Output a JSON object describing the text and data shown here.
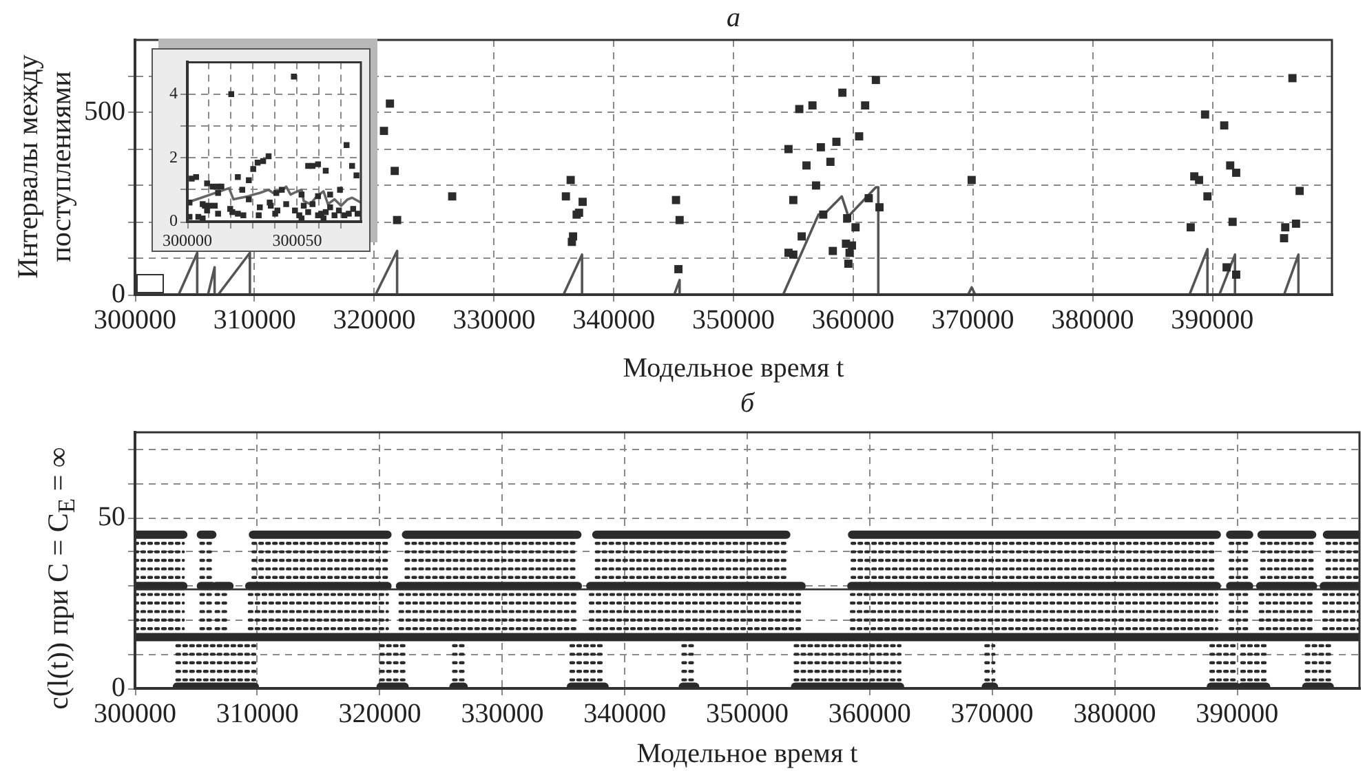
{
  "chart_data": [
    {
      "type": "scatter",
      "title": "а",
      "xlabel": "Модельное время t",
      "ylabel": "Интервалы между\nпоступлениями",
      "xlim": [
        300000,
        400000
      ],
      "ylim": [
        0,
        700
      ],
      "xticks": [
        300000,
        310000,
        320000,
        330000,
        340000,
        350000,
        360000,
        370000,
        380000,
        390000
      ],
      "yticks": [
        0,
        {
          "value": 100,
          "label": null
        },
        {
          "value": 200,
          "label": null
        },
        {
          "value": 300,
          "label": null
        },
        {
          "value": 400,
          "label": null
        },
        500,
        {
          "value": 600,
          "label": null
        }
      ],
      "grid": true,
      "marker": "square",
      "series": [
        {
          "type": "scatter",
          "color": "#2b2b2b",
          "x": [
            320800,
            321300,
            321700,
            321900,
            326500,
            336400,
            336000,
            337400,
            337100,
            336900,
            336600,
            336500,
            345200,
            345500,
            345400,
            354600,
            355000,
            355500,
            356600,
            356100,
            357300,
            356900,
            355700,
            354600,
            355000,
            357500,
            358100,
            358600,
            359100,
            358300,
            359500,
            359400,
            359900,
            359700,
            359600,
            360200,
            360500,
            361000,
            361900,
            361300,
            362200,
            369900,
            388200,
            388500,
            388900,
            389400,
            389600,
            391000,
            391500,
            392000,
            391700,
            391200,
            392000,
            396700,
            397300,
            397000,
            396100,
            396000
          ],
          "values": [
            450,
            525,
            340,
            205,
            270,
            315,
            270,
            255,
            225,
            220,
            160,
            145,
            260,
            205,
            70,
            400,
            260,
            510,
            520,
            355,
            405,
            300,
            160,
            115,
            110,
            220,
            365,
            420,
            555,
            120,
            210,
            140,
            135,
            115,
            85,
            185,
            435,
            520,
            590,
            265,
            240,
            315,
            185,
            325,
            315,
            495,
            270,
            465,
            355,
            335,
            200,
            75,
            55,
            595,
            285,
            195,
            185,
            155
          ]
        },
        {
          "type": "line",
          "color": "#555555",
          "marker": "none",
          "x": [
            300000,
            303650,
            305200,
            305200,
            306100,
            306650,
            306650,
            306950,
            309600,
            309600,
            320100,
            321900,
            321900,
            335800,
            337350,
            337350,
            345050,
            345500,
            345500,
            354150,
            357100,
            357700,
            359050,
            359600,
            361900,
            362100,
            362100,
            369600,
            369900,
            370200,
            388100,
            389600,
            389600,
            390600,
            391900,
            391900,
            396000,
            397200,
            397200,
            400000
          ],
          "values": [
            0,
            0,
            115,
            0,
            0,
            75,
            0,
            0,
            115,
            0,
            0,
            120,
            0,
            0,
            110,
            0,
            0,
            40,
            0,
            0,
            220,
            225,
            270,
            215,
            295,
            295,
            0,
            0,
            20,
            0,
            0,
            125,
            0,
            0,
            110,
            0,
            0,
            110,
            0,
            0
          ]
        }
      ]
    },
    {
      "type": "scatter",
      "xlim": [
        300000,
        300079
      ],
      "ylim": [
        0,
        5
      ],
      "xticks": [
        300000,
        {
          "value": 300010,
          "label": null
        },
        {
          "value": 300020,
          "label": null
        },
        {
          "value": 300030,
          "label": null
        },
        {
          "value": 300040,
          "label": null
        },
        300050,
        {
          "value": 300060,
          "label": null
        },
        {
          "value": 300070,
          "label": null
        }
      ],
      "yticks": [
        0,
        {
          "value": 1,
          "label": null
        },
        2,
        {
          "value": 3,
          "label": null
        },
        4
      ],
      "grid": true,
      "marker": "square",
      "series": [
        {
          "type": "scatter",
          "color": "#2b2b2b",
          "x": [
            300020,
            300048.5,
            300072.5,
            300037,
            300034.5,
            300032,
            300030,
            300028,
            300023,
            300025,
            300004,
            300002,
            300009,
            300011.5,
            300014,
            300015.5,
            300014,
            300055,
            300057,
            300059.5,
            300063,
            300075,
            300077,
            300052,
            300043,
            300040.5,
            300069.5,
            300065,
            300059.5,
            300001,
            300001,
            300005,
            300007,
            300008,
            300010,
            300012.5,
            300014,
            300020.5,
            300019.5,
            300023,
            300025.5,
            300028,
            300032.5,
            300033,
            300037.5,
            300038,
            300040,
            300041,
            300045,
            300049,
            300051,
            300053,
            300055,
            300057,
            300059.5,
            300061,
            300063,
            300065,
            300067,
            300069,
            300071.5,
            300073.5,
            300075.5,
            300077.5,
            300009,
            300007,
            300052,
            300062
          ],
          "values": [
            4,
            4.55,
            2.4,
            2.05,
            1.9,
            1.85,
            1.65,
            1.3,
            1.4,
            1,
            1.4,
            1.35,
            1.2,
            1.1,
            1.1,
            1.1,
            0.9,
            1.75,
            1.75,
            1.8,
            1.6,
            1.75,
            1.45,
            0.85,
            1,
            0.9,
            1,
            0.85,
            0.8,
            0.6,
            0.15,
            0.15,
            0.55,
            0.5,
            0.5,
            0.5,
            0.25,
            0.3,
            0.4,
            0.25,
            0.2,
            0.7,
            0.2,
            0.45,
            0.6,
            0.5,
            0.25,
            0.35,
            0.55,
            0.35,
            0.2,
            0.5,
            0.3,
            0.55,
            0.2,
            0.25,
            0.3,
            0.45,
            0.2,
            0.35,
            0.2,
            0.25,
            0.4,
            0.25,
            0.35,
            0.1,
            0.1,
            0.1
          ]
        },
        {
          "type": "line",
          "color": "#666666",
          "marker": "none",
          "x": [
            300000,
            300019,
            300021,
            300028,
            300030,
            300033,
            300037,
            300039,
            300043,
            300045,
            300047,
            300050,
            300052,
            300053,
            300056,
            300059,
            300062,
            300064,
            300067,
            300070,
            300073,
            300075,
            300079
          ],
          "values": [
            0.6,
            1.05,
            0.7,
            0.8,
            0.85,
            0.9,
            1,
            0.9,
            0.95,
            1.1,
            0.85,
            0.95,
            1,
            0.65,
            0.55,
            0.8,
            0.95,
            0.55,
            0.7,
            0.5,
            0.7,
            0.75,
            0.6
          ]
        }
      ]
    },
    {
      "type": "line",
      "title": "б",
      "xlabel": "Модельное время t",
      "ylabel": "c(l(t)) при C = C$_{E}$ = ∞",
      "xlim": [
        300000,
        400000
      ],
      "ylim": [
        0,
        75
      ],
      "xticks": [
        300000,
        310000,
        320000,
        330000,
        340000,
        350000,
        360000,
        370000,
        380000,
        390000
      ],
      "yticks": [
        0,
        {
          "value": 10,
          "label": null
        },
        {
          "value": 20,
          "label": null
        },
        {
          "value": 30,
          "label": null
        },
        {
          "value": 40,
          "label": null
        },
        50,
        {
          "value": 60,
          "label": null
        },
        {
          "value": 70,
          "label": null
        }
      ],
      "grid": true,
      "marker": "none",
      "ref_lines": [
        {
          "axis": "y",
          "value": 29,
          "color": "#333333"
        }
      ],
      "series": [
        {
          "color": "#2b2b2b",
          "line_style": "solid",
          "x": [
            300000,
            303950,
            304700,
            305380,
            306320,
            308000,
            309630,
            320620,
            321400,
            322130,
            336130,
            336900,
            337670,
            353190,
            355900,
            358560,
            388350,
            388900,
            389440,
            390990,
            391500,
            392000,
            396140,
            396700,
            397340,
            400000
          ],
          "values": [
            45,
            45,
            null,
            45,
            45,
            null,
            45,
            45,
            null,
            45,
            45,
            null,
            45,
            45,
            null,
            45,
            45,
            null,
            45,
            45,
            null,
            45,
            45,
            null,
            45,
            45
          ]
        },
        {
          "color": "#2b2b2b",
          "line_style": "dotted",
          "x": [
            300000,
            303950,
            304700,
            305380,
            306320,
            308000,
            309630,
            320620,
            321400,
            322130,
            336130,
            336900,
            337670,
            353190,
            355900,
            358560,
            388350,
            388900,
            389440,
            390990,
            391500,
            392000,
            396140,
            396700,
            397340,
            400000
          ],
          "values": [
            42.5,
            42.5,
            null,
            42.5,
            42.5,
            null,
            42.5,
            42.5,
            null,
            42.5,
            42.5,
            null,
            42.5,
            42.5,
            null,
            42.5,
            42.5,
            null,
            42.5,
            42.5,
            null,
            42.5,
            42.5,
            null,
            42.5,
            42.5
          ]
        },
        {
          "color": "#2b2b2b",
          "line_style": "dotted",
          "x": [
            300000,
            303950,
            304700,
            305380,
            306320,
            308000,
            309630,
            320620,
            321400,
            322130,
            336130,
            336900,
            337670,
            353190,
            355900,
            358560,
            388350,
            388900,
            389440,
            390990,
            391500,
            392000,
            396140,
            396700,
            397340,
            400000
          ],
          "values": [
            40,
            40,
            null,
            40,
            40,
            null,
            40,
            40,
            null,
            40,
            40,
            null,
            40,
            40,
            null,
            40,
            40,
            null,
            40,
            40,
            null,
            40,
            40,
            null,
            40,
            40
          ]
        },
        {
          "color": "#2b2b2b",
          "line_style": "dotted",
          "x": [
            300000,
            303950,
            304700,
            305380,
            306320,
            308000,
            309630,
            320620,
            321400,
            322130,
            336130,
            336900,
            337670,
            353190,
            355900,
            358560,
            388350,
            388900,
            389440,
            390990,
            391500,
            392000,
            396140,
            396700,
            397340,
            400000
          ],
          "values": [
            37.5,
            37.5,
            null,
            37.5,
            37.5,
            null,
            37.5,
            37.5,
            null,
            37.5,
            37.5,
            null,
            37.5,
            37.5,
            null,
            37.5,
            37.5,
            null,
            37.5,
            37.5,
            null,
            37.5,
            37.5,
            null,
            37.5,
            37.5
          ]
        },
        {
          "color": "#2b2b2b",
          "line_style": "dotted",
          "x": [
            300000,
            303950,
            304700,
            305380,
            306320,
            308000,
            309630,
            320620,
            321400,
            322130,
            336130,
            336900,
            337670,
            353190,
            355900,
            358560,
            388350,
            388900,
            389440,
            390990,
            391500,
            392000,
            396140,
            396700,
            397340,
            400000
          ],
          "values": [
            35,
            35,
            null,
            35,
            35,
            null,
            35,
            35,
            null,
            35,
            35,
            null,
            35,
            35,
            null,
            35,
            35,
            null,
            35,
            35,
            null,
            35,
            35,
            null,
            35,
            35
          ]
        },
        {
          "color": "#2b2b2b",
          "line_style": "dotted",
          "x": [
            300000,
            303950,
            304700,
            305380,
            306320,
            308000,
            309630,
            320620,
            321400,
            322130,
            336130,
            336900,
            337670,
            353190,
            355900,
            358560,
            388350,
            388900,
            389440,
            390990,
            391500,
            392000,
            396140,
            396700,
            397340,
            400000
          ],
          "values": [
            32.5,
            32.5,
            null,
            32.5,
            32.5,
            null,
            32.5,
            32.5,
            null,
            32.5,
            32.5,
            null,
            32.5,
            32.5,
            null,
            32.5,
            32.5,
            null,
            32.5,
            32.5,
            null,
            32.5,
            32.5,
            null,
            32.5,
            32.5
          ]
        },
        {
          "color": "#2b2b2b",
          "line_style": "solid",
          "x": [
            300000,
            303950,
            304700,
            305380,
            306320,
            306500,
            306620,
            307720,
            308500,
            309330,
            320620,
            321100,
            321640,
            336170,
            336700,
            337180,
            354440,
            356500,
            358500,
            388350,
            388900,
            389440,
            390990,
            391400,
            391890,
            396210,
            396600,
            397080,
            400000
          ],
          "values": [
            30,
            30,
            null,
            30,
            30,
            null,
            30,
            30,
            null,
            30,
            30,
            null,
            30,
            30,
            null,
            30,
            30,
            null,
            30,
            30,
            null,
            30,
            30,
            null,
            30,
            30,
            null,
            30,
            30
          ]
        },
        {
          "color": "#2b2b2b",
          "line_style": "dotted",
          "x": [
            300000,
            303950,
            304700,
            305380,
            306320,
            306500,
            306620,
            307720,
            308500,
            309330,
            320620,
            321100,
            321640,
            336170,
            336700,
            337180,
            354440,
            356500,
            358500,
            388350,
            388900,
            389440,
            390990,
            391400,
            391890,
            396210,
            396600,
            397080,
            400000
          ],
          "values": [
            27.5,
            27.5,
            null,
            27.5,
            27.5,
            null,
            27.5,
            27.5,
            null,
            27.5,
            27.5,
            null,
            27.5,
            27.5,
            null,
            27.5,
            27.5,
            null,
            27.5,
            27.5,
            null,
            27.5,
            27.5,
            null,
            27.5,
            27.5,
            null,
            27.5,
            27.5
          ]
        },
        {
          "color": "#2b2b2b",
          "line_style": "dotted",
          "x": [
            300000,
            303950,
            304700,
            305380,
            306320,
            306500,
            306620,
            307720,
            308500,
            309330,
            320620,
            321100,
            321640,
            336170,
            336700,
            337180,
            354440,
            356500,
            358500,
            388350,
            388900,
            389440,
            390990,
            391400,
            391890,
            396210,
            396600,
            397080,
            400000
          ],
          "values": [
            25,
            25,
            null,
            25,
            25,
            null,
            25,
            25,
            null,
            25,
            25,
            null,
            25,
            25,
            null,
            25,
            25,
            null,
            25,
            25,
            null,
            25,
            25,
            null,
            25,
            25,
            null,
            25,
            25
          ]
        },
        {
          "color": "#2b2b2b",
          "line_style": "dotted",
          "x": [
            300000,
            303950,
            304700,
            305380,
            306320,
            306500,
            306620,
            307720,
            308500,
            309330,
            320620,
            321100,
            321640,
            336170,
            336700,
            337180,
            354440,
            356500,
            358500,
            388350,
            388900,
            389440,
            390990,
            391400,
            391890,
            396210,
            396600,
            397080,
            400000
          ],
          "values": [
            22.5,
            22.5,
            null,
            22.5,
            22.5,
            null,
            22.5,
            22.5,
            null,
            22.5,
            22.5,
            null,
            22.5,
            22.5,
            null,
            22.5,
            22.5,
            null,
            22.5,
            22.5,
            null,
            22.5,
            22.5,
            null,
            22.5,
            22.5,
            null,
            22.5,
            22.5
          ]
        },
        {
          "color": "#2b2b2b",
          "line_style": "dotted",
          "x": [
            300000,
            303950,
            304700,
            305380,
            306320,
            306500,
            306620,
            307720,
            308500,
            309330,
            320620,
            321100,
            321640,
            336170,
            336700,
            337180,
            354440,
            356500,
            358500,
            388350,
            388900,
            389440,
            390990,
            391400,
            391890,
            396210,
            396600,
            397080,
            400000
          ],
          "values": [
            20,
            20,
            null,
            20,
            20,
            null,
            20,
            20,
            null,
            20,
            20,
            null,
            20,
            20,
            null,
            20,
            20,
            null,
            20,
            20,
            null,
            20,
            20,
            null,
            20,
            20,
            null,
            20,
            20
          ]
        },
        {
          "color": "#2b2b2b",
          "line_style": "dotted",
          "x": [
            300000,
            303950,
            304700,
            305380,
            306320,
            306500,
            306620,
            307720,
            308500,
            309330,
            320620,
            321100,
            321640,
            336170,
            336700,
            337180,
            354440,
            356500,
            358500,
            388350,
            388900,
            389440,
            390990,
            391400,
            391890,
            396210,
            396600,
            397080,
            400000
          ],
          "values": [
            17.5,
            17.5,
            null,
            17.5,
            17.5,
            null,
            17.5,
            17.5,
            null,
            17.5,
            17.5,
            null,
            17.5,
            17.5,
            null,
            17.5,
            17.5,
            null,
            17.5,
            17.5,
            null,
            17.5,
            17.5,
            null,
            17.5,
            17.5,
            null,
            17.5,
            17.5
          ]
        },
        {
          "color": "#2b2b2b",
          "line_style": "solid",
          "x": [
            300000,
            400000
          ],
          "values": [
            15,
            15
          ]
        },
        {
          "color": "#2b2b2b",
          "line_style": "dotted",
          "x": [
            303420,
            309790,
            315000,
            320060,
            322020,
            324000,
            326010,
            326840,
            331000,
            335600,
            338350,
            341000,
            344740,
            345750,
            350000,
            353910,
            362480,
            366000,
            369480,
            370150,
            379000,
            387860,
            389930,
            390150,
            390380,
            392380,
            394000,
            395650,
            397570
          ],
          "values": [
            12.5,
            12.5,
            null,
            12.5,
            12.5,
            null,
            12.5,
            12.5,
            null,
            12.5,
            12.5,
            null,
            12.5,
            12.5,
            null,
            12.5,
            12.5,
            null,
            12.5,
            12.5,
            null,
            12.5,
            12.5,
            null,
            12.5,
            12.5,
            null,
            12.5,
            12.5
          ]
        },
        {
          "color": "#2b2b2b",
          "line_style": "dotted",
          "x": [
            303420,
            309790,
            315000,
            320060,
            322020,
            324000,
            326010,
            326840,
            331000,
            335600,
            338350,
            341000,
            344740,
            345750,
            350000,
            353910,
            362480,
            366000,
            369480,
            370150,
            379000,
            387860,
            389930,
            390150,
            390380,
            392380,
            394000,
            395650,
            397570
          ],
          "values": [
            10,
            10,
            null,
            10,
            10,
            null,
            10,
            10,
            null,
            10,
            10,
            null,
            10,
            10,
            null,
            10,
            10,
            null,
            10,
            10,
            null,
            10,
            10,
            null,
            10,
            10,
            null,
            10,
            10
          ]
        },
        {
          "color": "#2b2b2b",
          "line_style": "dotted",
          "x": [
            303420,
            309790,
            315000,
            320060,
            322020,
            324000,
            326010,
            326840,
            331000,
            335600,
            338350,
            341000,
            344740,
            345750,
            350000,
            353910,
            362480,
            366000,
            369480,
            370150,
            379000,
            387860,
            389930,
            390150,
            390380,
            392380,
            394000,
            395650,
            397570
          ],
          "values": [
            7.5,
            7.5,
            null,
            7.5,
            7.5,
            null,
            7.5,
            7.5,
            null,
            7.5,
            7.5,
            null,
            7.5,
            7.5,
            null,
            7.5,
            7.5,
            null,
            7.5,
            7.5,
            null,
            7.5,
            7.5,
            null,
            7.5,
            7.5,
            null,
            7.5,
            7.5
          ]
        },
        {
          "color": "#2b2b2b",
          "line_style": "dotted",
          "x": [
            303420,
            309790,
            315000,
            320060,
            322020,
            324000,
            326010,
            326840,
            331000,
            335600,
            338350,
            341000,
            344740,
            345750,
            350000,
            353910,
            362480,
            366000,
            369480,
            370150,
            379000,
            387860,
            389930,
            390150,
            390380,
            392380,
            394000,
            395650,
            397570
          ],
          "values": [
            5,
            5,
            null,
            5,
            5,
            null,
            5,
            5,
            null,
            5,
            5,
            null,
            5,
            5,
            null,
            5,
            5,
            null,
            5,
            5,
            null,
            5,
            5,
            null,
            5,
            5,
            null,
            5,
            5
          ]
        },
        {
          "color": "#2b2b2b",
          "line_style": "dotted",
          "x": [
            303420,
            309790,
            315000,
            320060,
            322020,
            324000,
            326010,
            326840,
            331000,
            335600,
            338350,
            341000,
            344740,
            345750,
            350000,
            353910,
            362480,
            366000,
            369480,
            370150,
            379000,
            387860,
            389930,
            390150,
            390380,
            392380,
            394000,
            395650,
            397570
          ],
          "values": [
            2.5,
            2.5,
            null,
            2.5,
            2.5,
            null,
            2.5,
            2.5,
            null,
            2.5,
            2.5,
            null,
            2.5,
            2.5,
            null,
            2.5,
            2.5,
            null,
            2.5,
            2.5,
            null,
            2.5,
            2.5,
            null,
            2.5,
            2.5,
            null,
            2.5,
            2.5
          ]
        },
        {
          "color": "#2b2b2b",
          "line_style": "solid",
          "x": [
            303420,
            309790,
            315000,
            320060,
            322020,
            324000,
            326010,
            326840,
            331000,
            335600,
            338350,
            341000,
            344740,
            345750,
            350000,
            353910,
            362480,
            366000,
            369480,
            370150,
            379000,
            387860,
            389930,
            390150,
            390380,
            392380,
            394000,
            395650,
            397570
          ],
          "values": [
            0.5,
            0.5,
            null,
            0.5,
            0.5,
            null,
            0.5,
            0.5,
            null,
            0.5,
            0.5,
            null,
            0.5,
            0.5,
            null,
            0.5,
            0.5,
            null,
            0.5,
            0.5,
            null,
            0.5,
            0.5,
            null,
            0.5,
            0.5,
            null,
            0.5,
            0.5
          ]
        }
      ]
    }
  ]
}
